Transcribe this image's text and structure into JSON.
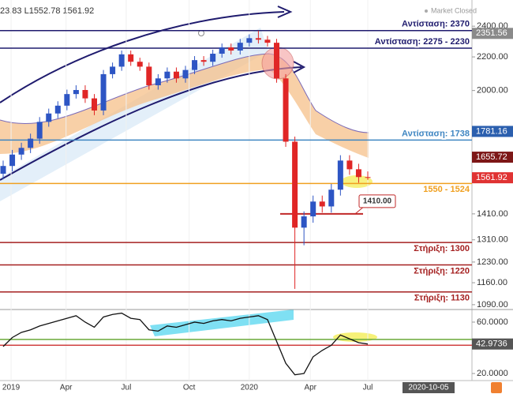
{
  "chart_data": [
    {
      "type": "candlestick",
      "header": "23.83 L1552.78 1561.92",
      "status": "Market Closed",
      "log_scale": true,
      "ylim": [
        1080,
        2585
      ],
      "yticks": [
        {
          "value": 2400,
          "label": "2400.00"
        },
        {
          "value": 2200,
          "label": "2200.00"
        },
        {
          "value": 2000,
          "label": "2000.00"
        },
        {
          "value": 1410,
          "label": "1410.00"
        },
        {
          "value": 1310,
          "label": "1310.00"
        },
        {
          "value": 1230,
          "label": "1230.00"
        },
        {
          "value": 1160,
          "label": "1160.00"
        },
        {
          "value": 1090,
          "label": "1090.00"
        }
      ],
      "x_labels": [
        {
          "value": 0.87,
          "label": "2019"
        },
        {
          "value": 6.9,
          "label": "Apr"
        },
        {
          "value": 13.5,
          "label": "Jul"
        },
        {
          "value": 20.4,
          "label": "Oct"
        },
        {
          "value": 27,
          "label": "2020"
        },
        {
          "value": 33.7,
          "label": "Apr"
        },
        {
          "value": 40,
          "label": "Jul"
        }
      ],
      "cursor_date": "2020-10-05",
      "up_color": "#2d55c4",
      "down_color": "#e02626",
      "open": [
        1580,
        1615,
        1668,
        1700,
        1745,
        1830,
        1874,
        1916,
        1980,
        2003,
        1956,
        1890,
        2095,
        2140,
        2216,
        2170,
        2140,
        2030,
        2070,
        2110,
        2070,
        2120,
        2180,
        2170,
        2220,
        2260,
        2240,
        2290,
        2320,
        2310,
        2290,
        2070,
        1730,
        1356,
        1400,
        1460,
        1440,
        1510,
        1640,
        1600,
        1565
      ],
      "high": [
        1640,
        1690,
        1725,
        1770,
        1855,
        1900,
        1940,
        2005,
        2030,
        2030,
        1980,
        2120,
        2165,
        2240,
        2240,
        2195,
        2165,
        2095,
        2135,
        2135,
        2145,
        2205,
        2205,
        2245,
        2285,
        2285,
        2315,
        2345,
        2370,
        2335,
        2315,
        2095,
        1755,
        1420,
        1485,
        1485,
        1535,
        1665,
        1665,
        1625,
        1590
      ],
      "low": [
        1555,
        1590,
        1643,
        1675,
        1720,
        1805,
        1849,
        1891,
        1955,
        1931,
        1865,
        1865,
        2070,
        2115,
        2145,
        2115,
        2005,
        2005,
        2045,
        2045,
        2045,
        2095,
        2145,
        2145,
        2195,
        2215,
        2215,
        2265,
        2285,
        2265,
        2045,
        1705,
        1140,
        1290,
        1375,
        1415,
        1415,
        1485,
        1575,
        1540,
        1552.78
      ],
      "close": [
        1615,
        1668,
        1700,
        1745,
        1830,
        1874,
        1916,
        1980,
        2003,
        1956,
        1890,
        2095,
        2140,
        2216,
        2170,
        2140,
        2030,
        2070,
        2110,
        2070,
        2120,
        2180,
        2170,
        2220,
        2260,
        2240,
        2290,
        2320,
        2310,
        2290,
        2070,
        1730,
        1356,
        1400,
        1460,
        1440,
        1510,
        1640,
        1600,
        1565,
        1561.92
      ],
      "levels": [
        {
          "value": 2370,
          "label": "Αντίσταση: 2370",
          "color": "#1f1b6e",
          "label_position": "above"
        },
        {
          "value": 2255,
          "label": "Αντίσταση: 2275 - 2230",
          "color": "#1f1b6e",
          "label_position": "above"
        },
        {
          "value": 1738,
          "label": "Αντίσταση: 1738",
          "color": "#3f86c2",
          "label_position": "above"
        },
        {
          "value": 1537,
          "label": "1550 - 1524",
          "color": "#f0a020",
          "label_position": "below"
        },
        {
          "value": 1300,
          "label": "Στήριξη: 1300",
          "color": "#a52020",
          "label_position": "below"
        },
        {
          "value": 1220,
          "label": "Στήριξη: 1220",
          "color": "#a52020",
          "label_position": "below"
        },
        {
          "value": 1130,
          "label": "Στήριξη: 1130",
          "color": "#a52020",
          "label_position": "below"
        }
      ],
      "callout": {
        "value": 1410,
        "label": "1410.00",
        "color": "#c02828"
      },
      "price_labels": [
        {
          "value": 2351.56,
          "color": "#8a8a8a"
        },
        {
          "value": 1781.16,
          "color": "#2b5fae"
        },
        {
          "value": 1655.72,
          "color": "#7d1717"
        },
        {
          "value": 1561.92,
          "color": "#e03333"
        }
      ]
    },
    {
      "type": "line",
      "ylim": [
        14.5,
        69.2
      ],
      "yticks": [
        {
          "value": 60,
          "label": "60.0000"
        },
        {
          "value": 20,
          "label": "20.0000"
        }
      ],
      "color": "#111111",
      "values": [
        41,
        48,
        52,
        54,
        57,
        59,
        61,
        63,
        65,
        60,
        56,
        64,
        66,
        67,
        63,
        62,
        54,
        53,
        57,
        56,
        58,
        60,
        59,
        61,
        62,
        61,
        63,
        64,
        65,
        62,
        45,
        28,
        19,
        20,
        33,
        38,
        42,
        50,
        47,
        44,
        42.9736
      ],
      "levels": [
        {
          "value": 46.5,
          "color": "#6aaa3a"
        },
        {
          "value": 42,
          "color": "#d04040"
        }
      ],
      "price_label": {
        "value": 42.9736,
        "color": "#555555"
      }
    }
  ]
}
